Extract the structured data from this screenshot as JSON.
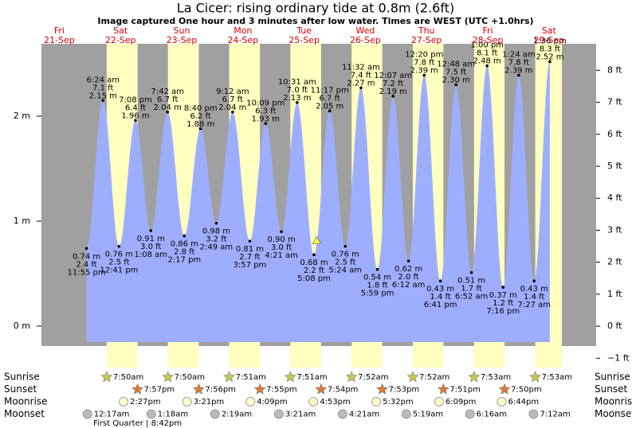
{
  "chart_data": {
    "type": "area",
    "title": "La Cicer: rising  ordinary tide at 0.8m (2.6ft)",
    "subtitle": "Image captured One hour and 3 minutes after low water. Times are WEST (UTC +1.0hrs)",
    "days": {
      "weekdays": [
        "Fri",
        "Sat",
        "Sun",
        "Mon",
        "Tue",
        "Wed",
        "Thu",
        "Fri",
        "Sat"
      ],
      "dates": [
        "21-Sep",
        "22-Sep",
        "23-Sep",
        "24-Sep",
        "25-Sep",
        "26-Sep",
        "27-Sep",
        "28-Sep",
        "29-Sep"
      ]
    },
    "ylim": [
      -0.19,
      2.69
    ],
    "yticks": [
      {
        "value": 0,
        "label": "0 m"
      },
      {
        "value": 1,
        "label": "1 m"
      },
      {
        "value": 2,
        "label": "2 m"
      }
    ],
    "y2lim": [
      -0.62,
      8.83
    ],
    "y2ticks": [
      {
        "value": -1,
        "label": "−1 ft"
      },
      {
        "value": 0,
        "label": "0 ft"
      },
      {
        "value": 1,
        "label": "1 ft"
      },
      {
        "value": 2,
        "label": "2 ft"
      },
      {
        "value": 3,
        "label": "3 ft"
      },
      {
        "value": 4,
        "label": "4 ft"
      },
      {
        "value": 5,
        "label": "5 ft"
      },
      {
        "value": 6,
        "label": "6 ft"
      },
      {
        "value": 7,
        "label": "7 ft"
      },
      {
        "value": 8,
        "label": "8 ft"
      }
    ],
    "color": "#9eaeff",
    "extremes": {
      "dates": [
        "21-Sep",
        "22-Sep",
        "22-Sep",
        "22-Sep",
        "23-Sep",
        "23-Sep",
        "23-Sep",
        "23-Sep",
        "24-Sep",
        "24-Sep",
        "24-Sep",
        "24-Sep",
        "25-Sep",
        "25-Sep",
        "25-Sep",
        "25-Sep",
        "26-Sep",
        "26-Sep",
        "26-Sep",
        "27-Sep",
        "27-Sep",
        "27-Sep",
        "27-Sep",
        "28-Sep",
        "28-Sep",
        "28-Sep",
        "28-Sep",
        "29-Sep",
        "29-Sep",
        "29-Sep"
      ],
      "times": [
        "11:55 pm",
        "6:24 am",
        "12:41 pm",
        "7:08 pm",
        "1:08 am",
        "7:42 am",
        "2:17 pm",
        "8:40 pm",
        "2:49 am",
        "9:12 am",
        "3:57 pm",
        "10:09 pm",
        "4:21 am",
        "10:31 am",
        "5:08 pm",
        "11:17 pm",
        "5:24 am",
        "11:32 am",
        "5:59 pm",
        "12:07 am",
        "6:12 am",
        "12:20 pm",
        "6:41 pm",
        "12:48 am",
        "6:52 am",
        "1:00 pm",
        "7:16 pm",
        "1:24 am",
        "7:27 am",
        "1:36 pm"
      ],
      "values": [
        0.74,
        2.15,
        0.76,
        1.96,
        0.91,
        2.04,
        0.86,
        1.88,
        0.98,
        2.04,
        0.81,
        1.93,
        0.9,
        2.13,
        0.68,
        2.05,
        0.76,
        2.27,
        0.54,
        2.19,
        0.62,
        2.39,
        0.43,
        2.3,
        0.51,
        2.48,
        0.37,
        2.39,
        0.43,
        2.52
      ],
      "value_labels": [
        "0.74 m",
        "2.15 m",
        "0.76 m",
        "1.96 m",
        "0.91 m",
        "2.04 m",
        "0.86 m",
        "1.88 m",
        "0.98 m",
        "2.04 m",
        "0.81 m",
        "1.93 m",
        "0.90 m",
        "2.13 m",
        "0.68 m",
        "2.05 m",
        "0.76 m",
        "2.27 m",
        "0.54 m",
        "2.19 m",
        "0.62 m",
        "2.39 m",
        "0.43 m",
        "2.30 m",
        "0.51 m",
        "2.48 m",
        "0.37 m",
        "2.39 m",
        "0.43 m",
        "2.52 m"
      ],
      "ft_labels": [
        "2.4 ft",
        "7.1 ft",
        "2.5 ft",
        "6.4 ft",
        "3.0 ft",
        "6.7 ft",
        "2.8 ft",
        "6.2 ft",
        "3.2 ft",
        "6.7 ft",
        "2.7 ft",
        "6.3 ft",
        "3.0 ft",
        "7.0 ft",
        "2.2 ft",
        "6.7 ft",
        "2.5 ft",
        "7.4 ft",
        "1.8 ft",
        "7.2 ft",
        "2.0 ft",
        "7.8 ft",
        "1.4 ft",
        "7.5 ft",
        "1.7 ft",
        "8.1 ft",
        "1.2 ft",
        "7.8 ft",
        "1.4 ft",
        "8.3 ft"
      ]
    },
    "current": {
      "date": "25-Sep",
      "time": "6:11 pm",
      "value": 0.8
    },
    "sun_moon": [
      {
        "name": "Sunrise",
        "color": "#c8c84a",
        "dates": [
          "22-Sep",
          "23-Sep",
          "24-Sep",
          "25-Sep",
          "26-Sep",
          "27-Sep",
          "28-Sep",
          "29-Sep"
        ],
        "times": [
          "7:50am",
          "7:50am",
          "7:51am",
          "7:51am",
          "7:52am",
          "7:52am",
          "7:53am",
          "7:53am"
        ]
      },
      {
        "name": "Sunset",
        "color": "#e07838",
        "dates": [
          "22-Sep",
          "23-Sep",
          "24-Sep",
          "25-Sep",
          "26-Sep",
          "27-Sep",
          "28-Sep"
        ],
        "times": [
          "7:57pm",
          "7:56pm",
          "7:55pm",
          "7:54pm",
          "7:53pm",
          "7:51pm",
          "7:50pm"
        ]
      },
      {
        "name": "Moonrise",
        "color": "#ffffcc",
        "dates": [
          "22-Sep",
          "23-Sep",
          "24-Sep",
          "25-Sep",
          "26-Sep",
          "27-Sep",
          "28-Sep"
        ],
        "times": [
          "2:27pm",
          "3:21pm",
          "4:09pm",
          "4:53pm",
          "5:32pm",
          "6:09pm",
          "6:44pm"
        ]
      },
      {
        "name": "Moonset",
        "color": "#bbbbbb",
        "dates": [
          "22-Sep",
          "23-Sep",
          "24-Sep",
          "25-Sep",
          "26-Sep",
          "27-Sep",
          "28-Sep",
          "29-Sep"
        ],
        "times": [
          "12:17am",
          "1:18am",
          "2:19am",
          "3:21am",
          "4:21am",
          "5:19am",
          "6:16am",
          "7:12am"
        ]
      }
    ],
    "moon_phase": "First Quarter | 8:42pm",
    "plot_color": "#a0a0a0",
    "daylight_color": "#ffffbf"
  }
}
